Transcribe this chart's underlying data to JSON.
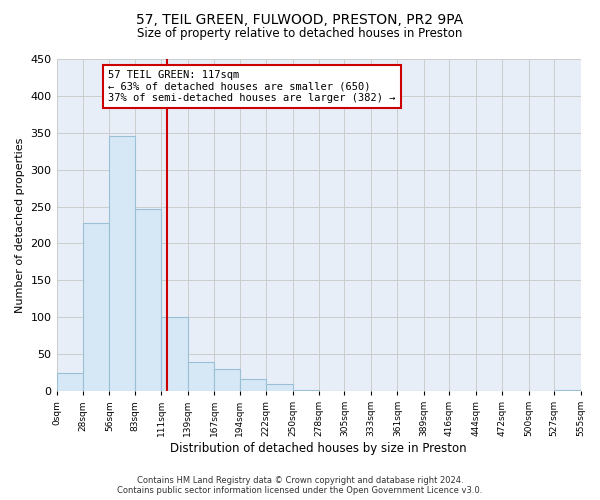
{
  "title1": "57, TEIL GREEN, FULWOOD, PRESTON, PR2 9PA",
  "title2": "Size of property relative to detached houses in Preston",
  "xlabel": "Distribution of detached houses by size in Preston",
  "ylabel": "Number of detached properties",
  "bin_edges": [
    0,
    28,
    56,
    83,
    111,
    139,
    167,
    194,
    222,
    250,
    278,
    305,
    333,
    361,
    389,
    416,
    444,
    472,
    500,
    527,
    555
  ],
  "bar_heights": [
    25,
    228,
    345,
    247,
    101,
    40,
    30,
    16,
    10,
    2,
    0,
    0,
    0,
    0,
    0,
    0,
    0,
    0,
    0,
    1
  ],
  "bar_color": "#d6e8f5",
  "bar_edgecolor": "#9bbfd4",
  "grid_color": "#cccccc",
  "property_size": 117,
  "vline_color": "#cc0000",
  "annotation_text": "57 TEIL GREEN: 117sqm\n← 63% of detached houses are smaller (650)\n37% of semi-detached houses are larger (382) →",
  "annotation_boxcolor": "white",
  "annotation_edgecolor": "#cc0000",
  "ylim": [
    0,
    450
  ],
  "yticks": [
    0,
    50,
    100,
    150,
    200,
    250,
    300,
    350,
    400,
    450
  ],
  "tick_labels": [
    "0sqm",
    "28sqm",
    "56sqm",
    "83sqm",
    "111sqm",
    "139sqm",
    "167sqm",
    "194sqm",
    "222sqm",
    "250sqm",
    "278sqm",
    "305sqm",
    "333sqm",
    "361sqm",
    "389sqm",
    "416sqm",
    "444sqm",
    "472sqm",
    "500sqm",
    "527sqm",
    "555sqm"
  ],
  "footnote": "Contains HM Land Registry data © Crown copyright and database right 2024.\nContains public sector information licensed under the Open Government Licence v3.0.",
  "bg_color": "#ffffff",
  "plot_bg_color": "#e8eef8"
}
